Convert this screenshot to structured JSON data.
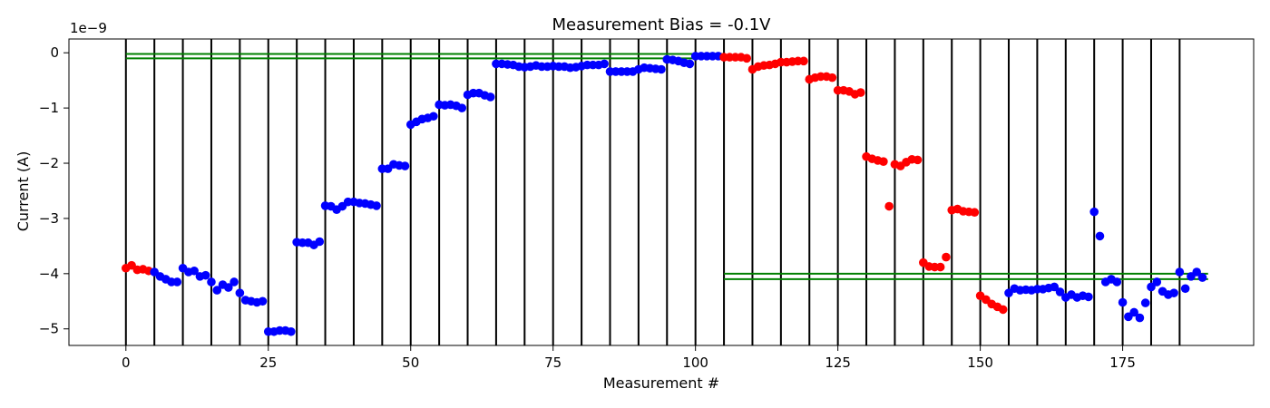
{
  "chart_data": {
    "type": "scatter",
    "title": "Measurement Bias = -0.1V",
    "xlabel": "Measurement #",
    "ylabel": "Current (A)",
    "y_offset_label": "1e−9",
    "xlim": [
      -10,
      198
    ],
    "ylim": [
      -5.3,
      0.25
    ],
    "x_ticks": [
      0,
      25,
      50,
      75,
      100,
      125,
      150,
      175
    ],
    "y_ticks": [
      0,
      -1,
      -2,
      -3,
      -4,
      -5
    ],
    "y_tick_labels": [
      "0",
      "−1",
      "−2",
      "−3",
      "−4",
      "−5"
    ],
    "colors": {
      "red": "#ff0000",
      "blue": "#0000ff",
      "green": "#008000",
      "vline": "#000000"
    },
    "vertical_lines": [
      0,
      5,
      10,
      15,
      20,
      25,
      30,
      35,
      40,
      45,
      50,
      55,
      60,
      65,
      70,
      75,
      80,
      85,
      90,
      95,
      100,
      105,
      110,
      115,
      120,
      125,
      130,
      135,
      140,
      145,
      150,
      155,
      160,
      165,
      170,
      175,
      180,
      185
    ],
    "reference_lines": [
      {
        "x": [
          0,
          105
        ],
        "y": -0.02
      },
      {
        "x": [
          0,
          105
        ],
        "y": -0.1
      },
      {
        "x": [
          105,
          190
        ],
        "y": -4.0
      },
      {
        "x": [
          105,
          190
        ],
        "y": -4.1
      }
    ],
    "series": [
      {
        "color": "red",
        "x": [
          0,
          1,
          2,
          3,
          4
        ],
        "y": [
          -3.9,
          -3.85,
          -3.93,
          -3.92,
          -3.95
        ]
      },
      {
        "color": "blue",
        "x": [
          5,
          6,
          7,
          8,
          9,
          10,
          11,
          12,
          13,
          14,
          15,
          16,
          17,
          18,
          19,
          20,
          21,
          22,
          23,
          24,
          25,
          26,
          27,
          28,
          29,
          30,
          31,
          32,
          33,
          34,
          35,
          36,
          37,
          38,
          39,
          40,
          41,
          42,
          43,
          44,
          45,
          46,
          47,
          48,
          49,
          50,
          51,
          52,
          53,
          54,
          55,
          56,
          57,
          58,
          59,
          60,
          61,
          62,
          63,
          64,
          65,
          66,
          67,
          68,
          69,
          70,
          71,
          72,
          73,
          74,
          75,
          76,
          77,
          78,
          79,
          80,
          81,
          82,
          83,
          84,
          85,
          86,
          87,
          88,
          89,
          90,
          91,
          92,
          93,
          94,
          95,
          96,
          97,
          98,
          99,
          100,
          101,
          102,
          103,
          104
        ],
        "y": [
          -3.97,
          -4.05,
          -4.1,
          -4.15,
          -4.15,
          -3.9,
          -3.97,
          -3.95,
          -4.05,
          -4.03,
          -4.15,
          -4.3,
          -4.2,
          -4.25,
          -4.15,
          -4.35,
          -4.48,
          -4.5,
          -4.52,
          -4.5,
          -5.05,
          -5.05,
          -5.03,
          -5.03,
          -5.05,
          -3.43,
          -3.44,
          -3.44,
          -3.48,
          -3.42,
          -2.77,
          -2.78,
          -2.84,
          -2.78,
          -2.7,
          -2.7,
          -2.72,
          -2.73,
          -2.75,
          -2.77,
          -2.1,
          -2.1,
          -2.02,
          -2.04,
          -2.05,
          -1.3,
          -1.25,
          -1.2,
          -1.18,
          -1.15,
          -0.94,
          -0.95,
          -0.94,
          -0.96,
          -1.0,
          -0.76,
          -0.73,
          -0.73,
          -0.77,
          -0.8,
          -0.2,
          -0.2,
          -0.21,
          -0.22,
          -0.25,
          -0.26,
          -0.25,
          -0.23,
          -0.25,
          -0.25,
          -0.24,
          -0.25,
          -0.25,
          -0.27,
          -0.26,
          -0.24,
          -0.22,
          -0.22,
          -0.22,
          -0.2,
          -0.34,
          -0.34,
          -0.34,
          -0.34,
          -0.34,
          -0.3,
          -0.27,
          -0.28,
          -0.29,
          -0.3,
          -0.12,
          -0.13,
          -0.15,
          -0.18,
          -0.2,
          -0.06,
          -0.06,
          -0.06,
          -0.06,
          -0.06
        ]
      },
      {
        "color": "red",
        "x": [
          105,
          106,
          107,
          108,
          109,
          110,
          111,
          112,
          113,
          114,
          115,
          116,
          117,
          118,
          119,
          120,
          121,
          122,
          123,
          124,
          125,
          126,
          127,
          128,
          129,
          130,
          131,
          132,
          133,
          134,
          135,
          136,
          137,
          138,
          139,
          140,
          141,
          142,
          143,
          144,
          145,
          146,
          147,
          148,
          149,
          150,
          151,
          152,
          153,
          154
        ],
        "y": [
          -0.08,
          -0.08,
          -0.08,
          -0.08,
          -0.1,
          -0.3,
          -0.25,
          -0.23,
          -0.22,
          -0.2,
          -0.17,
          -0.17,
          -0.16,
          -0.15,
          -0.15,
          -0.48,
          -0.45,
          -0.43,
          -0.43,
          -0.45,
          -0.68,
          -0.68,
          -0.7,
          -0.75,
          -0.72,
          -1.88,
          -1.92,
          -1.95,
          -1.97,
          -2.78,
          -2.02,
          -2.05,
          -1.98,
          -1.93,
          -1.94,
          -3.8,
          -3.87,
          -3.88,
          -3.88,
          -3.7,
          -2.85,
          -2.83,
          -2.87,
          -2.88,
          -2.89,
          -4.4,
          -4.47,
          -4.55,
          -4.6,
          -4.65
        ]
      },
      {
        "color": "blue",
        "x": [
          155,
          156,
          157,
          158,
          159,
          160,
          161,
          162,
          163,
          164,
          165,
          166,
          167,
          168,
          169,
          170,
          171,
          172,
          173,
          174,
          175,
          176,
          177,
          178,
          179,
          180,
          181,
          182,
          183,
          184,
          185,
          186,
          187,
          188,
          189
        ],
        "y": [
          -4.35,
          -4.27,
          -4.3,
          -4.29,
          -4.3,
          -4.28,
          -4.28,
          -4.26,
          -4.24,
          -4.33,
          -4.43,
          -4.38,
          -4.43,
          -4.4,
          -4.42,
          -2.88,
          -3.32,
          -4.15,
          -4.1,
          -4.15,
          -4.52,
          -4.78,
          -4.7,
          -4.8,
          -4.53,
          -4.24,
          -4.15,
          -4.32,
          -4.38,
          -4.35,
          -3.97,
          -4.27,
          -4.05,
          -3.97,
          -4.07
        ]
      }
    ]
  }
}
